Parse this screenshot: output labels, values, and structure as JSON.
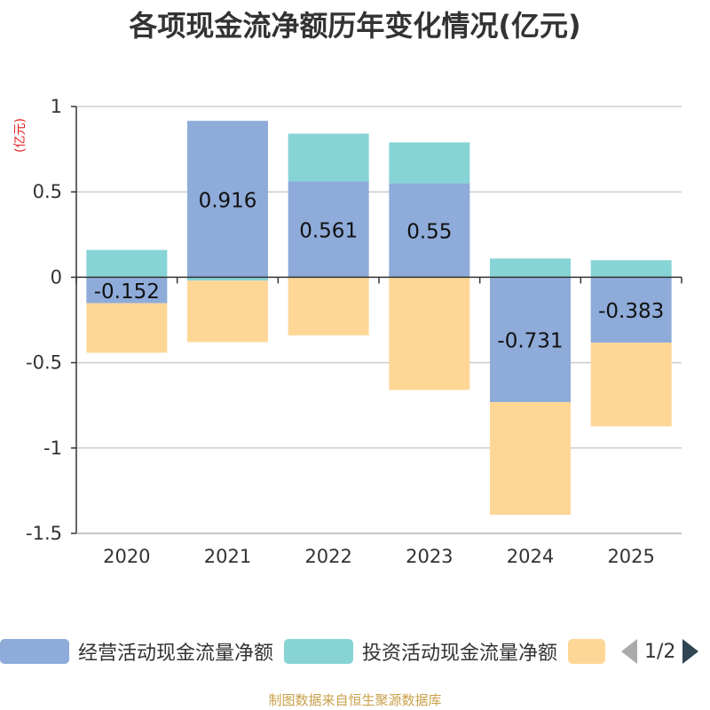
{
  "title": "各项现金流净额历年变化情况(亿元)",
  "unit_label": "(亿元)",
  "source": "制图数据来自恒生聚源数据库",
  "legend": {
    "items": [
      {
        "label": "经营活动现金流量净额",
        "color": "#8eabd9"
      },
      {
        "label": "投资活动现金流量净额",
        "color": "#87d4d6"
      },
      {
        "label": "",
        "color": "#fed797"
      }
    ],
    "page": "1/2"
  },
  "chart_data": {
    "type": "bar",
    "stacked": true,
    "title": "各项现金流净额历年变化情况(亿元)",
    "ylabel": "(亿元)",
    "categories": [
      "2020",
      "2021",
      "2022",
      "2023",
      "2024",
      "2025"
    ],
    "ylim": [
      -1.5,
      1
    ],
    "yticks": [
      1,
      0.5,
      0,
      -0.5,
      -1,
      -1.5
    ],
    "ytick_labels": [
      "1",
      "0.5",
      "0",
      "-0.5",
      "-1",
      "-1.5"
    ],
    "grid": true,
    "series": [
      {
        "name": "经营活动现金流量净额",
        "color": "#8eabd9",
        "values": [
          -0.152,
          0.916,
          0.561,
          0.55,
          -0.731,
          -0.383
        ],
        "labels": [
          "-0.152",
          "0.916",
          "0.561",
          "0.55",
          "-0.731",
          "-0.383"
        ]
      },
      {
        "name": "投资活动现金流量净额",
        "color": "#87d4d6",
        "values": [
          0.16,
          -0.02,
          0.28,
          0.24,
          0.11,
          0.1
        ]
      },
      {
        "name": "",
        "color": "#fed797",
        "values": [
          -0.29,
          -0.36,
          -0.34,
          -0.66,
          -0.66,
          -0.49
        ]
      }
    ]
  }
}
